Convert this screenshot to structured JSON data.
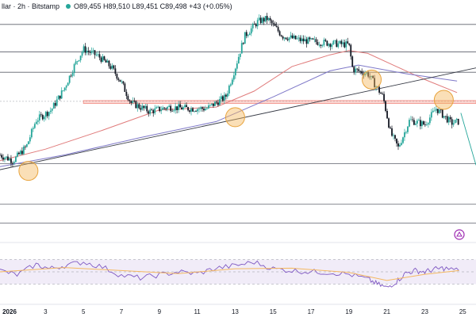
{
  "header": {
    "symbol_line": "llar · 2h · Bitstamp",
    "ohlc": "O89,455  H89,510  L89,451  C89,498  +43 (+0.05%)"
  },
  "chart_data": [
    {
      "type": "candlestick",
      "title": "",
      "x_ticks": [
        {
          "label": "2026",
          "day": 1,
          "bold": true
        },
        {
          "label": "3",
          "day": 3
        },
        {
          "label": "5",
          "day": 5
        },
        {
          "label": "7",
          "day": 7
        },
        {
          "label": "9",
          "day": 9
        },
        {
          "label": "11",
          "day": 11
        },
        {
          "label": "13",
          "day": 13
        },
        {
          "label": "15",
          "day": 15
        },
        {
          "label": "17",
          "day": 17
        },
        {
          "label": "19",
          "day": 19
        },
        {
          "label": "21",
          "day": 21
        },
        {
          "label": "23",
          "day": 23
        },
        {
          "label": "25",
          "day": 25
        }
      ],
      "x_range_days": [
        0.6,
        25.7
      ],
      "y_range": [
        83000,
        98300
      ],
      "horizontal_levels": [
        97600,
        95700,
        94300,
        88000,
        85200,
        83900
      ],
      "resistance_zone": [
        92150,
        92350
      ],
      "reference_line": 92300,
      "price_anchors": [
        {
          "day": 0.6,
          "price": 88600
        },
        {
          "day": 1.3,
          "price": 88200
        },
        {
          "day": 2.0,
          "price": 89200
        },
        {
          "day": 2.5,
          "price": 91000
        },
        {
          "day": 3.3,
          "price": 91700
        },
        {
          "day": 4.0,
          "price": 93200
        },
        {
          "day": 4.5,
          "price": 94700
        },
        {
          "day": 5.0,
          "price": 95900
        },
        {
          "day": 5.8,
          "price": 95400
        },
        {
          "day": 6.5,
          "price": 94600
        },
        {
          "day": 7.0,
          "price": 93600
        },
        {
          "day": 7.5,
          "price": 92200
        },
        {
          "day": 8.5,
          "price": 91600
        },
        {
          "day": 9.5,
          "price": 91900
        },
        {
          "day": 10.5,
          "price": 91800
        },
        {
          "day": 11.5,
          "price": 91800
        },
        {
          "day": 12.5,
          "price": 92600
        },
        {
          "day": 13.0,
          "price": 94600
        },
        {
          "day": 13.5,
          "price": 96800
        },
        {
          "day": 14.2,
          "price": 97800
        },
        {
          "day": 14.7,
          "price": 98000
        },
        {
          "day": 15.5,
          "price": 96800
        },
        {
          "day": 16.5,
          "price": 96500
        },
        {
          "day": 18.0,
          "price": 96300
        },
        {
          "day": 19.0,
          "price": 96200
        },
        {
          "day": 19.2,
          "price": 94500
        },
        {
          "day": 20.0,
          "price": 94200
        },
        {
          "day": 20.8,
          "price": 92600
        },
        {
          "day": 21.2,
          "price": 90100
        },
        {
          "day": 21.6,
          "price": 89100
        },
        {
          "day": 22.2,
          "price": 91000
        },
        {
          "day": 23.0,
          "price": 90700
        },
        {
          "day": 23.6,
          "price": 91800
        },
        {
          "day": 24.4,
          "price": 90800
        },
        {
          "day": 24.8,
          "price": 90900
        }
      ],
      "trendlines": [
        {
          "from": {
            "day": 0.3,
            "price": 87500
          },
          "to": {
            "day": 25.7,
            "price": 94600
          },
          "color": "#363a45"
        },
        {
          "from": {
            "day": 24.9,
            "price": 91500
          },
          "to": {
            "day": 25.7,
            "price": 87900
          },
          "color": "#26a69a"
        }
      ],
      "series": [
        {
          "kind": "moving-average",
          "color": "#e07b7b",
          "points": [
            {
              "day": 0.6,
              "price": 88200
            },
            {
              "day": 3,
              "price": 89000
            },
            {
              "day": 6,
              "price": 90300
            },
            {
              "day": 9,
              "price": 91700
            },
            {
              "day": 12,
              "price": 91900
            },
            {
              "day": 14,
              "price": 93000
            },
            {
              "day": 16,
              "price": 94700
            },
            {
              "day": 18,
              "price": 95500
            },
            {
              "day": 19,
              "price": 95800
            },
            {
              "day": 20,
              "price": 95600
            },
            {
              "day": 21.5,
              "price": 94700
            },
            {
              "day": 23,
              "price": 93800
            },
            {
              "day": 24.7,
              "price": 92900
            }
          ]
        },
        {
          "kind": "moving-average",
          "color": "#7e78c8",
          "points": [
            {
              "day": 0.6,
              "price": 87800
            },
            {
              "day": 4,
              "price": 88600
            },
            {
              "day": 8,
              "price": 89800
            },
            {
              "day": 12,
              "price": 90900
            },
            {
              "day": 15,
              "price": 92600
            },
            {
              "day": 18,
              "price": 94400
            },
            {
              "day": 19.5,
              "price": 94800
            },
            {
              "day": 22,
              "price": 94200
            },
            {
              "day": 24.7,
              "price": 93700
            }
          ]
        }
      ],
      "highlights": [
        {
          "day": 2.1,
          "price": 87500,
          "color": "#f4b860"
        },
        {
          "day": 13.0,
          "price": 91200,
          "color": "#f4b860"
        },
        {
          "day": 20.2,
          "price": 93800,
          "color": "#f4b860"
        },
        {
          "day": 24.0,
          "price": 92400,
          "color": "#f4b860"
        }
      ],
      "colors": {
        "up": "#26a69a",
        "down": "#131722",
        "grid": "#787b86",
        "zone": "#f28b82"
      },
      "grid": false
    },
    {
      "type": "line",
      "title": "",
      "panel": "oscillator",
      "y_range": [
        10,
        90
      ],
      "band": [
        30,
        70
      ],
      "mid_levels": [
        50
      ],
      "colors": {
        "line": "#7e57c2",
        "signal": "#f4b860",
        "band": "#ede7f6"
      },
      "series_points": [
        {
          "day": 0.6,
          "value": 52
        },
        {
          "day": 1.5,
          "value": 45
        },
        {
          "day": 2.5,
          "value": 62
        },
        {
          "day": 3.2,
          "value": 55
        },
        {
          "day": 4.0,
          "value": 60
        },
        {
          "day": 5.0,
          "value": 66
        },
        {
          "day": 6.0,
          "value": 58
        },
        {
          "day": 7.0,
          "value": 44
        },
        {
          "day": 8.0,
          "value": 40
        },
        {
          "day": 9.0,
          "value": 45
        },
        {
          "day": 10.0,
          "value": 50
        },
        {
          "day": 11.0,
          "value": 47
        },
        {
          "day": 12.0,
          "value": 56
        },
        {
          "day": 13.0,
          "value": 60
        },
        {
          "day": 14.0,
          "value": 66
        },
        {
          "day": 15.0,
          "value": 55
        },
        {
          "day": 16.0,
          "value": 52
        },
        {
          "day": 17.0,
          "value": 50
        },
        {
          "day": 18.0,
          "value": 49
        },
        {
          "day": 19.0,
          "value": 46
        },
        {
          "day": 20.0,
          "value": 38
        },
        {
          "day": 20.5,
          "value": 30
        },
        {
          "day": 21.0,
          "value": 24
        },
        {
          "day": 21.5,
          "value": 34
        },
        {
          "day": 22.0,
          "value": 48
        },
        {
          "day": 22.5,
          "value": 52
        },
        {
          "day": 23.0,
          "value": 50
        },
        {
          "day": 23.5,
          "value": 54
        },
        {
          "day": 24.0,
          "value": 56
        },
        {
          "day": 24.8,
          "value": 52
        }
      ],
      "signal_points": [
        {
          "day": 0.6,
          "value": 50
        },
        {
          "day": 4,
          "value": 57
        },
        {
          "day": 7,
          "value": 52
        },
        {
          "day": 10,
          "value": 47
        },
        {
          "day": 13,
          "value": 55
        },
        {
          "day": 16,
          "value": 56
        },
        {
          "day": 19,
          "value": 49
        },
        {
          "day": 21,
          "value": 36
        },
        {
          "day": 23,
          "value": 46
        },
        {
          "day": 24.8,
          "value": 52
        }
      ]
    }
  ]
}
